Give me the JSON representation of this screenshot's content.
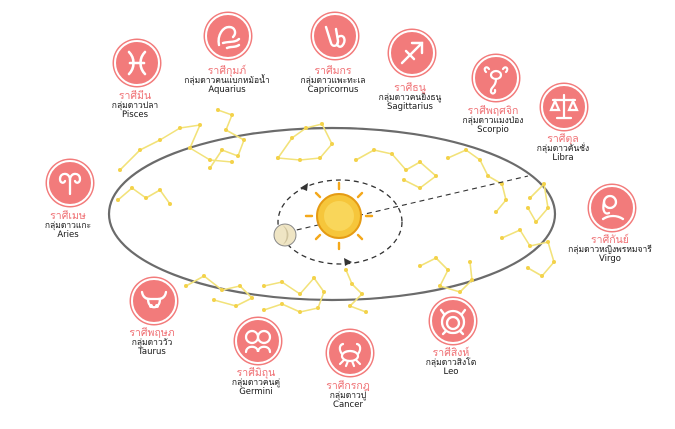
{
  "colors": {
    "badge": "#f27b7b",
    "thai_name": "#ef6f73",
    "constellation_line": "#f2e27a",
    "constellation_star": "#f3d24a",
    "orbit": "#666666",
    "sun": "#f4b51d",
    "earth": "#efe5c4"
  },
  "signs": [
    {
      "key": "pisces",
      "icon": "pisces-icon",
      "thai": "ราศีมีน",
      "group": "กลุ่มดาวปลา",
      "english": "Pisces"
    },
    {
      "key": "aquarius",
      "icon": "aquarius-icon",
      "thai": "ราศีกุมภ์",
      "group": "กลุ่มดาวคนแบกหม้อน้ำ",
      "english": "Aquarius"
    },
    {
      "key": "capricorn",
      "icon": "capricorn-icon",
      "thai": "ราศีมกร",
      "group": "กลุ่มดาวแพะทะเล",
      "english": "Capricornus"
    },
    {
      "key": "sagittarius",
      "icon": "sagittarius-icon",
      "thai": "ราศีธนู",
      "group": "กลุ่มดาวคนยิงธนู",
      "english": "Sagittarius"
    },
    {
      "key": "scorpio",
      "icon": "scorpio-icon",
      "thai": "ราศีพฤศจิก",
      "group": "กลุ่มดาวแมงป่อง",
      "english": "Scorpio"
    },
    {
      "key": "libra",
      "icon": "libra-icon",
      "thai": "ราศีตุล",
      "group": "กลุ่มดาวคันชั่ง",
      "english": "Libra"
    },
    {
      "key": "virgo",
      "icon": "virgo-icon",
      "thai": "ราศีกันย์",
      "group": "กลุ่มดาวหญิงพรหมจารี",
      "english": "Virgo"
    },
    {
      "key": "leo",
      "icon": "leo-icon",
      "thai": "ราศีสิงห์",
      "group": "กลุ่มดาวสิงโต",
      "english": "Leo"
    },
    {
      "key": "cancer",
      "icon": "cancer-icon",
      "thai": "ราศีกรกฎ",
      "group": "กลุ่มดาวปู",
      "english": "Cancer"
    },
    {
      "key": "gemini",
      "icon": "gemini-icon",
      "thai": "ราศีมิถุน",
      "group": "กลุ่มดาวคนคู่",
      "english": "Germini"
    },
    {
      "key": "taurus",
      "icon": "taurus-icon",
      "thai": "ราศีพฤษภ",
      "group": "กลุ่มดาววัว",
      "english": "Taurus"
    },
    {
      "key": "aries",
      "icon": "aries-icon",
      "thai": "ราศีเมษ",
      "group": "กลุ่มดาวแกะ",
      "english": "Aries"
    }
  ]
}
